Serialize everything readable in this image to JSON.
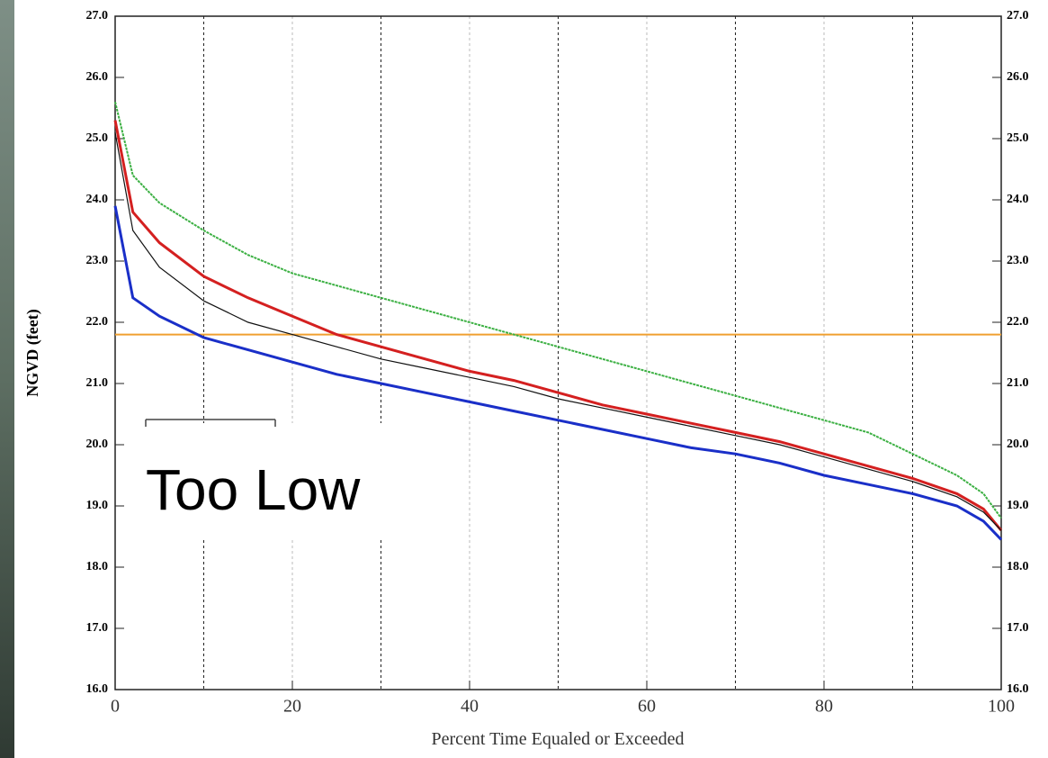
{
  "chart_data": {
    "type": "line",
    "y_label": "NGVD (feet)",
    "x_label": "Percent Time Equaled or Exceeded",
    "annotation": "Too Low",
    "x": [
      0,
      2,
      5,
      10,
      15,
      20,
      25,
      30,
      35,
      40,
      45,
      50,
      55,
      60,
      65,
      70,
      75,
      80,
      85,
      90,
      95,
      98,
      100
    ],
    "series": [
      {
        "color": "#3cb043",
        "dash": true,
        "values": [
          25.6,
          24.4,
          23.95,
          23.5,
          23.1,
          22.8,
          22.6,
          22.4,
          22.2,
          22.0,
          21.8,
          21.6,
          21.4,
          21.2,
          21.0,
          20.8,
          20.6,
          20.4,
          20.2,
          19.85,
          19.5,
          19.2,
          18.8
        ]
      },
      {
        "color": "#d42020",
        "values": [
          25.3,
          23.8,
          23.3,
          22.75,
          22.4,
          22.1,
          21.8,
          21.6,
          21.4,
          21.2,
          21.05,
          20.85,
          20.65,
          20.5,
          20.35,
          20.2,
          20.05,
          19.85,
          19.65,
          19.45,
          19.2,
          18.95,
          18.6
        ]
      },
      {
        "color": "#111111",
        "values": [
          25.1,
          23.5,
          22.9,
          22.35,
          22.0,
          21.8,
          21.6,
          21.4,
          21.25,
          21.1,
          20.95,
          20.75,
          20.6,
          20.45,
          20.3,
          20.15,
          20.0,
          19.8,
          19.6,
          19.4,
          19.15,
          18.9,
          18.6
        ]
      },
      {
        "color": "#1a2fc8",
        "values": [
          23.9,
          22.4,
          22.1,
          21.75,
          21.55,
          21.35,
          21.15,
          21.0,
          20.85,
          20.7,
          20.55,
          20.4,
          20.25,
          20.1,
          19.95,
          19.85,
          19.7,
          19.5,
          19.35,
          19.2,
          19.0,
          18.75,
          18.45
        ]
      }
    ],
    "reference_line": {
      "value": 21.8,
      "color": "#f0a030"
    },
    "xlim": [
      0,
      100
    ],
    "xticks": [
      0,
      20,
      40,
      60,
      80,
      100
    ],
    "xgrid": [
      10,
      20,
      30,
      40,
      50,
      60,
      70,
      80,
      90
    ],
    "ylim": [
      16,
      27
    ],
    "yticks": [
      {
        "value": 16,
        "label": "16.0"
      },
      {
        "value": 17,
        "label": "17.0"
      },
      {
        "value": 18,
        "label": "18.0"
      },
      {
        "value": 19,
        "label": "19.0"
      },
      {
        "value": 20,
        "label": "20.0"
      },
      {
        "value": 21,
        "label": "21.0"
      },
      {
        "value": 22,
        "label": "22.0"
      },
      {
        "value": 23,
        "label": "23.0"
      },
      {
        "value": 24,
        "label": "24.0"
      },
      {
        "value": 25,
        "label": "25.0"
      },
      {
        "value": 26,
        "label": "26.0"
      },
      {
        "value": 27,
        "label": "27.0"
      }
    ],
    "y2lim": [
      16,
      27
    ],
    "y2ticks": [
      {
        "value": 16,
        "label": "16.0"
      },
      {
        "value": 17,
        "label": "17.0"
      },
      {
        "value": 18,
        "label": "18.0"
      },
      {
        "value": 19,
        "label": "19.0"
      },
      {
        "value": 20,
        "label": "20.0"
      },
      {
        "value": 21,
        "label": "21.0"
      },
      {
        "value": 22,
        "label": "22.0"
      },
      {
        "value": 23,
        "label": "23.0"
      },
      {
        "value": 24,
        "label": "24.0"
      },
      {
        "value": 25,
        "label": "25.0"
      },
      {
        "value": 26,
        "label": "26.0"
      },
      {
        "value": 27,
        "label": "27.0"
      }
    ]
  }
}
